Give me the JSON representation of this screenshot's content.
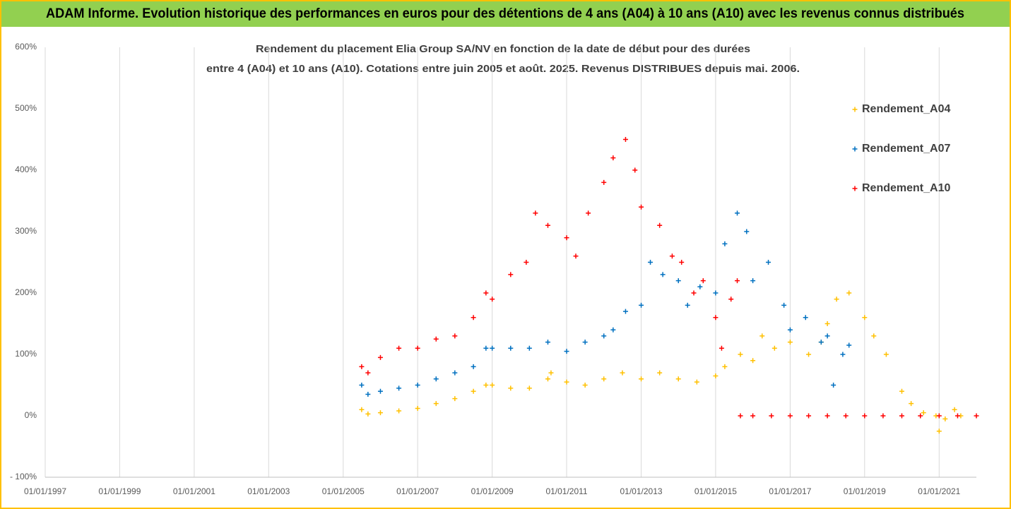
{
  "chart_data": {
    "type": "scatter",
    "title": "ADAM Informe. Evolution historique des performances en euros pour des détentions de 4 ans (A04) à 10 ans (A10) avec les revenus connus distribués",
    "subtitle": [
      "Rendement du placement Elia Group SA/NV en fonction de la date de début pour des durées",
      "entre 4 (A04) et 10 ans (A10). Cotations entre juin 2005 et août. 2025. Revenus DISTRIBUES depuis mai. 2006."
    ],
    "xlim": [
      "1997-01-01",
      "2022-01-01"
    ],
    "xticks": [
      {
        "value": "1997-01-01",
        "label": "01/01/1997"
      },
      {
        "value": "1999-01-01",
        "label": "01/01/1999"
      },
      {
        "value": "2001-01-01",
        "label": "01/01/2001"
      },
      {
        "value": "2003-01-01",
        "label": "01/01/2003"
      },
      {
        "value": "2005-01-01",
        "label": "01/01/2005"
      },
      {
        "value": "2007-01-01",
        "label": "01/01/2007"
      },
      {
        "value": "2009-01-01",
        "label": "01/01/2009"
      },
      {
        "value": "2011-01-01",
        "label": "01/01/2011"
      },
      {
        "value": "2013-01-01",
        "label": "01/01/2013"
      },
      {
        "value": "2015-01-01",
        "label": "01/01/2015"
      },
      {
        "value": "2017-01-01",
        "label": "01/01/2017"
      },
      {
        "value": "2019-01-01",
        "label": "01/01/2019"
      },
      {
        "value": "2021-01-01",
        "label": "01/01/2021"
      }
    ],
    "ylim": [
      -100,
      600
    ],
    "yticks": [
      {
        "value": -100,
        "label": "- 100%"
      },
      {
        "value": 0,
        "label": "0%"
      },
      {
        "value": 100,
        "label": "100%"
      },
      {
        "value": 200,
        "label": "200%"
      },
      {
        "value": 300,
        "label": "300%"
      },
      {
        "value": 400,
        "label": "400%"
      },
      {
        "value": 500,
        "label": "500%"
      },
      {
        "value": 600,
        "label": "600%"
      }
    ],
    "grid": true,
    "legend": "right",
    "series": [
      {
        "name": "Rendement_A04",
        "color": "#FFC000",
        "x": [
          "2005-07-01",
          "2005-09-01",
          "2006-01-01",
          "2006-07-01",
          "2007-01-01",
          "2007-07-01",
          "2008-01-01",
          "2008-07-01",
          "2008-11-01",
          "2009-01-01",
          "2009-07-01",
          "2010-01-01",
          "2010-07-01",
          "2010-08-01",
          "2011-01-01",
          "2011-07-01",
          "2012-01-01",
          "2012-07-01",
          "2013-01-01",
          "2013-07-01",
          "2014-01-01",
          "2014-07-01",
          "2015-01-01",
          "2015-04-01",
          "2015-09-01",
          "2016-01-01",
          "2016-04-01",
          "2016-08-01",
          "2017-01-01",
          "2017-07-01",
          "2017-11-01",
          "2018-01-01",
          "2018-04-01",
          "2018-08-01",
          "2019-01-01",
          "2019-04-01",
          "2019-08-01",
          "2020-01-01",
          "2020-04-01",
          "2020-08-01",
          "2020-12-01",
          "2021-01-01",
          "2021-03-01",
          "2021-06-01",
          "2021-08-01"
        ],
        "values": [
          10,
          3,
          5,
          8,
          12,
          20,
          28,
          40,
          50,
          50,
          45,
          45,
          60,
          70,
          55,
          50,
          60,
          70,
          60,
          70,
          60,
          55,
          65,
          80,
          100,
          90,
          130,
          110,
          120,
          100,
          120,
          150,
          190,
          200,
          160,
          130,
          100,
          40,
          20,
          5,
          0,
          -25,
          -5,
          10,
          0
        ]
      },
      {
        "name": "Rendement_A07",
        "color": "#0070C0",
        "x": [
          "2005-07-01",
          "2005-09-01",
          "2006-01-01",
          "2006-07-01",
          "2007-01-01",
          "2007-07-01",
          "2008-01-01",
          "2008-07-01",
          "2008-11-01",
          "2009-01-01",
          "2009-07-01",
          "2010-01-01",
          "2010-07-01",
          "2011-01-01",
          "2011-07-01",
          "2012-01-01",
          "2012-04-01",
          "2012-08-01",
          "2013-01-01",
          "2013-04-01",
          "2013-08-01",
          "2014-01-01",
          "2014-04-01",
          "2014-08-01",
          "2015-01-01",
          "2015-04-01",
          "2015-08-01",
          "2015-11-01",
          "2016-01-01",
          "2016-06-01",
          "2016-11-01",
          "2017-01-01",
          "2017-06-01",
          "2017-11-01",
          "2018-01-01",
          "2018-03-01",
          "2018-06-01",
          "2018-08-01"
        ],
        "values": [
          50,
          35,
          40,
          45,
          50,
          60,
          70,
          80,
          110,
          110,
          110,
          110,
          120,
          105,
          120,
          130,
          140,
          170,
          180,
          250,
          230,
          220,
          180,
          210,
          200,
          280,
          330,
          300,
          220,
          250,
          180,
          140,
          160,
          120,
          130,
          50,
          100,
          115
        ]
      },
      {
        "name": "Rendement_A10",
        "color": "#FF0000",
        "x": [
          "2005-07-01",
          "2005-09-01",
          "2006-01-01",
          "2006-07-01",
          "2007-01-01",
          "2007-07-01",
          "2008-01-01",
          "2008-07-01",
          "2008-11-01",
          "2009-01-01",
          "2009-07-01",
          "2009-12-01",
          "2010-03-01",
          "2010-07-01",
          "2011-01-01",
          "2011-04-01",
          "2011-08-01",
          "2012-01-01",
          "2012-04-01",
          "2012-08-01",
          "2012-11-01",
          "2013-01-01",
          "2013-07-01",
          "2013-11-01",
          "2014-02-01",
          "2014-06-01",
          "2014-09-01",
          "2015-01-01",
          "2015-03-01",
          "2015-06-01",
          "2015-08-01",
          "2015-09-01",
          "2016-01-01",
          "2016-07-01",
          "2017-01-01",
          "2017-07-01",
          "2018-01-01",
          "2018-07-01",
          "2019-01-01",
          "2019-07-01",
          "2020-01-01",
          "2020-07-01",
          "2021-01-01",
          "2021-07-01",
          "2022-01-01"
        ],
        "values": [
          80,
          70,
          95,
          110,
          110,
          125,
          130,
          160,
          200,
          190,
          230,
          250,
          330,
          310,
          290,
          260,
          330,
          380,
          420,
          450,
          400,
          340,
          310,
          260,
          250,
          200,
          220,
          160,
          110,
          190,
          220,
          0,
          0,
          0,
          0,
          0,
          0,
          0,
          0,
          0,
          0,
          0,
          0,
          0,
          0
        ]
      }
    ]
  }
}
